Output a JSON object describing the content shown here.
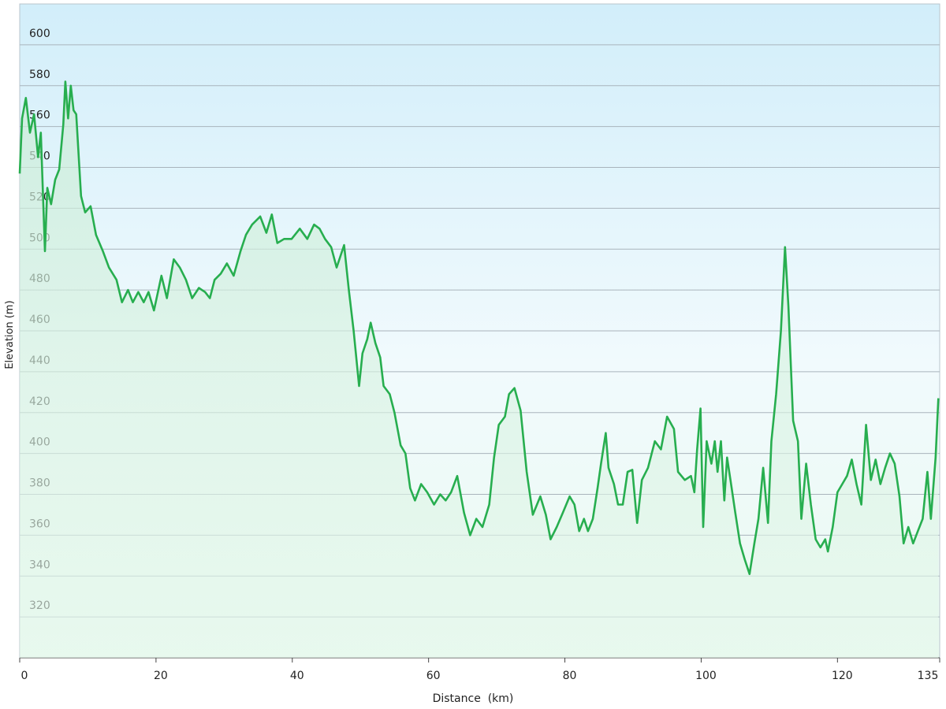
{
  "chart_data": {
    "type": "line",
    "x_label": "Distance  (km)",
    "y_label": "Elevation (m)",
    "xlim": [
      0,
      135
    ],
    "ylim": [
      300,
      620
    ],
    "xticks": [
      0,
      20,
      40,
      60,
      80,
      100,
      120,
      135
    ],
    "yticks": [
      320,
      340,
      360,
      380,
      400,
      420,
      440,
      460,
      480,
      500,
      520,
      540,
      560,
      580,
      600
    ],
    "grid": true,
    "color": "#27ae4f",
    "x": [
      0,
      0.35,
      0.9,
      1.5,
      2.1,
      2.7,
      3.1,
      3.7,
      4.05,
      4.6,
      5.2,
      5.8,
      6.4,
      6.7,
      7.1,
      7.5,
      7.9,
      8.3,
      9.0,
      9.6,
      10.4,
      11.2,
      12.2,
      13.1,
      14.2,
      15.0,
      15.9,
      16.6,
      17.4,
      18.2,
      18.9,
      19.7,
      20.8,
      21.6,
      22.6,
      23.5,
      24.4,
      25.3,
      26.3,
      27.2,
      27.9,
      28.6,
      29.5,
      30.4,
      31.4,
      32.4,
      33.2,
      34.1,
      35.3,
      36.2,
      37.0,
      37.8,
      38.8,
      39.9,
      41.1,
      42.2,
      43.2,
      44.0,
      44.8,
      45.7,
      46.5,
      47.6,
      48.3,
      49.0,
      49.8,
      50.3,
      51.0,
      51.5,
      52.2,
      52.9,
      53.4,
      54.3,
      55.0,
      55.9,
      56.6,
      57.3,
      58.0,
      58.9,
      59.8,
      60.8,
      61.7,
      62.5,
      63.3,
      64.2,
      65.2,
      66.1,
      67.0,
      67.9,
      68.9,
      69.6,
      70.3,
      71.2,
      71.8,
      72.6,
      73.5,
      74.4,
      75.3,
      76.4,
      77.2,
      77.9,
      78.8,
      79.7,
      80.7,
      81.4,
      82.1,
      82.8,
      83.4,
      84.1,
      84.8,
      85.3,
      86.0,
      86.4,
      87.2,
      87.8,
      88.5,
      89.2,
      89.9,
      90.6,
      91.3,
      92.2,
      93.2,
      94.1,
      95.0,
      96.0,
      96.6,
      97.6,
      98.5,
      99.0,
      99.4,
      99.9,
      100.3,
      100.8,
      101.5,
      102.0,
      102.4,
      102.9,
      103.4,
      103.8,
      104.3,
      105.0,
      105.7,
      106.4,
      107.1,
      107.8,
      108.4,
      109.1,
      109.8,
      110.3,
      111.0,
      111.7,
      112.3,
      112.8,
      113.5,
      114.2,
      114.7,
      115.4,
      116.1,
      116.8,
      117.5,
      118.2,
      118.6,
      119.3,
      120.0,
      120.7,
      121.4,
      122.1,
      122.8,
      123.5,
      124.2,
      124.9,
      125.6,
      126.3,
      127.0,
      127.7,
      128.4,
      129.1,
      129.7,
      130.4,
      131.1,
      131.8,
      132.5,
      133.2,
      133.7,
      134.4,
      134.8
    ],
    "values": [
      537,
      564,
      574,
      557,
      566,
      545,
      557,
      499,
      530,
      522,
      534,
      539,
      561,
      582,
      564,
      580,
      568,
      566,
      526,
      518,
      521,
      507,
      499,
      491,
      485,
      474,
      480,
      474,
      479,
      474,
      479,
      470,
      487,
      476,
      495,
      491,
      485,
      476,
      481,
      479,
      476,
      485,
      488,
      493,
      487,
      499,
      507,
      512,
      516,
      508,
      517,
      503,
      505,
      505,
      510,
      505,
      512,
      510,
      505,
      501,
      491,
      502,
      480,
      460,
      433,
      449,
      456,
      464,
      454,
      447,
      433,
      429,
      420,
      404,
      400,
      383,
      377,
      385,
      381,
      375,
      380,
      377,
      381,
      389,
      371,
      360,
      368,
      364,
      375,
      398,
      414,
      418,
      429,
      432,
      421,
      391,
      370,
      379,
      370,
      358,
      364,
      371,
      379,
      375,
      362,
      368,
      362,
      368,
      383,
      395,
      410,
      393,
      385,
      375,
      375,
      391,
      392,
      366,
      387,
      393,
      406,
      402,
      418,
      412,
      391,
      387,
      389,
      381,
      402,
      422,
      364,
      406,
      395,
      406,
      391,
      406,
      377,
      398,
      387,
      371,
      356,
      348,
      341,
      356,
      368,
      393,
      366,
      406,
      429,
      460,
      501,
      472,
      416,
      406,
      368,
      395,
      375,
      358,
      354,
      358,
      352,
      364,
      381,
      385,
      389,
      397,
      385,
      375,
      414,
      387,
      397,
      385,
      393,
      400,
      395,
      379,
      356,
      364,
      356,
      362,
      368,
      391,
      368,
      398,
      427
    ]
  }
}
